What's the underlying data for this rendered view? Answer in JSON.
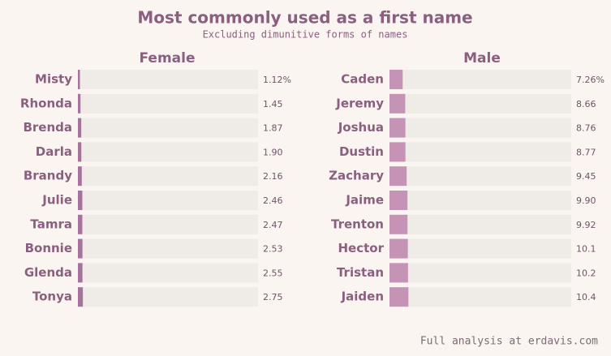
{
  "title": "Most commonly used as a first name",
  "subtitle": "Excluding dimunitive forms of names",
  "source": "Full analysis at erdavis.com",
  "chart_data": [
    {
      "type": "bar",
      "title": "Female",
      "color": "#a8729e",
      "categories": [
        "Misty",
        "Rhonda",
        "Brenda",
        "Darla",
        "Brandy",
        "Julie",
        "Tamra",
        "Bonnie",
        "Glenda",
        "Tonya"
      ],
      "values": [
        1.12,
        1.45,
        1.87,
        1.9,
        2.16,
        2.46,
        2.47,
        2.53,
        2.55,
        2.75
      ],
      "value_labels": [
        "1.12%",
        "1.45",
        "1.87",
        "1.90",
        "2.16",
        "2.46",
        "2.47",
        "2.53",
        "2.55",
        "2.75"
      ],
      "xlim": [
        0,
        100
      ]
    },
    {
      "type": "bar",
      "title": "Male",
      "color": "#c493b6",
      "categories": [
        "Caden",
        "Jeremy",
        "Joshua",
        "Dustin",
        "Zachary",
        "Jaime",
        "Trenton",
        "Hector",
        "Tristan",
        "Jaiden"
      ],
      "values": [
        7.26,
        8.66,
        8.76,
        8.77,
        9.45,
        9.9,
        9.92,
        10.1,
        10.2,
        10.4
      ],
      "value_labels": [
        "7.26%",
        "8.66",
        "8.76",
        "8.77",
        "9.45",
        "9.90",
        "9.92",
        "10.1",
        "10.2",
        "10.4"
      ],
      "xlim": [
        0,
        100
      ]
    }
  ]
}
